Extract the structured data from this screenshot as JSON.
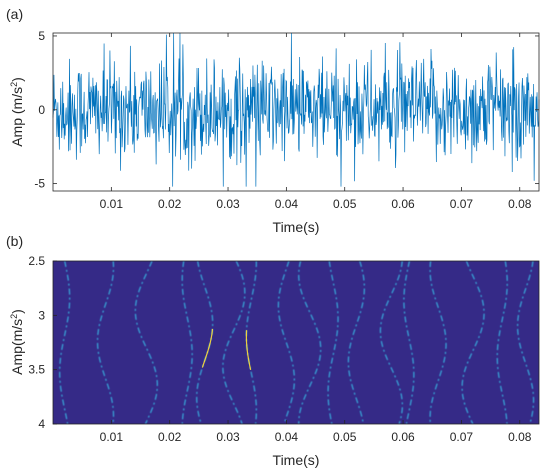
{
  "chart_data": [
    {
      "type": "line",
      "panel_label": "(a)",
      "xlabel": "Time(s)",
      "ylabel_base": "Amp (m/s",
      "ylabel_exp": "2",
      "ylabel_close": ")",
      "xlim": [
        0.0,
        0.0833
      ],
      "ylim": [
        -5.5,
        5.2
      ],
      "xticks": [
        0.01,
        0.02,
        0.03,
        0.04,
        0.05,
        0.06,
        0.07,
        0.08
      ],
      "xtick_labels": [
        "0.01",
        "0.02",
        "0.03",
        "0.04",
        "0.05",
        "0.06",
        "0.07",
        "0.08"
      ],
      "yticks": [
        -5,
        0,
        5
      ],
      "ytick_labels": [
        "-5",
        "0",
        "5"
      ],
      "line_color": "#0072bd",
      "n_samples": 1000,
      "amplitude_std": 1.7,
      "amplitude_peak": 5.2
    },
    {
      "type": "heatmap",
      "panel_label": "(b)",
      "xlabel": "Time(s)",
      "ylabel_base": "Amp(m/s",
      "ylabel_exp": "2",
      "ylabel_close": ")",
      "xlim": [
        0.0,
        0.0833
      ],
      "ylim": [
        2.5,
        4.0
      ],
      "y_reversed": true,
      "xticks": [
        0.01,
        0.02,
        0.03,
        0.04,
        0.05,
        0.06,
        0.07,
        0.08
      ],
      "xtick_labels": [
        "0.01",
        "0.02",
        "0.03",
        "0.04",
        "0.05",
        "0.06",
        "0.07",
        "0.08"
      ],
      "yticks": [
        2.5,
        3.0,
        3.5,
        4.0
      ],
      "ytick_labels": [
        "2.5",
        "3",
        "3.5",
        "4"
      ],
      "background_color": "#352a87",
      "ridge_color": "#38b6e3",
      "highlight_color": "#f9d83a",
      "ridges_x": [
        0.002,
        0.009,
        0.016,
        0.023,
        0.026,
        0.031,
        0.034,
        0.04,
        0.044,
        0.048,
        0.052,
        0.058,
        0.061,
        0.066,
        0.072,
        0.077,
        0.081
      ],
      "highlight_ridges_x": [
        0.026,
        0.034
      ]
    }
  ]
}
